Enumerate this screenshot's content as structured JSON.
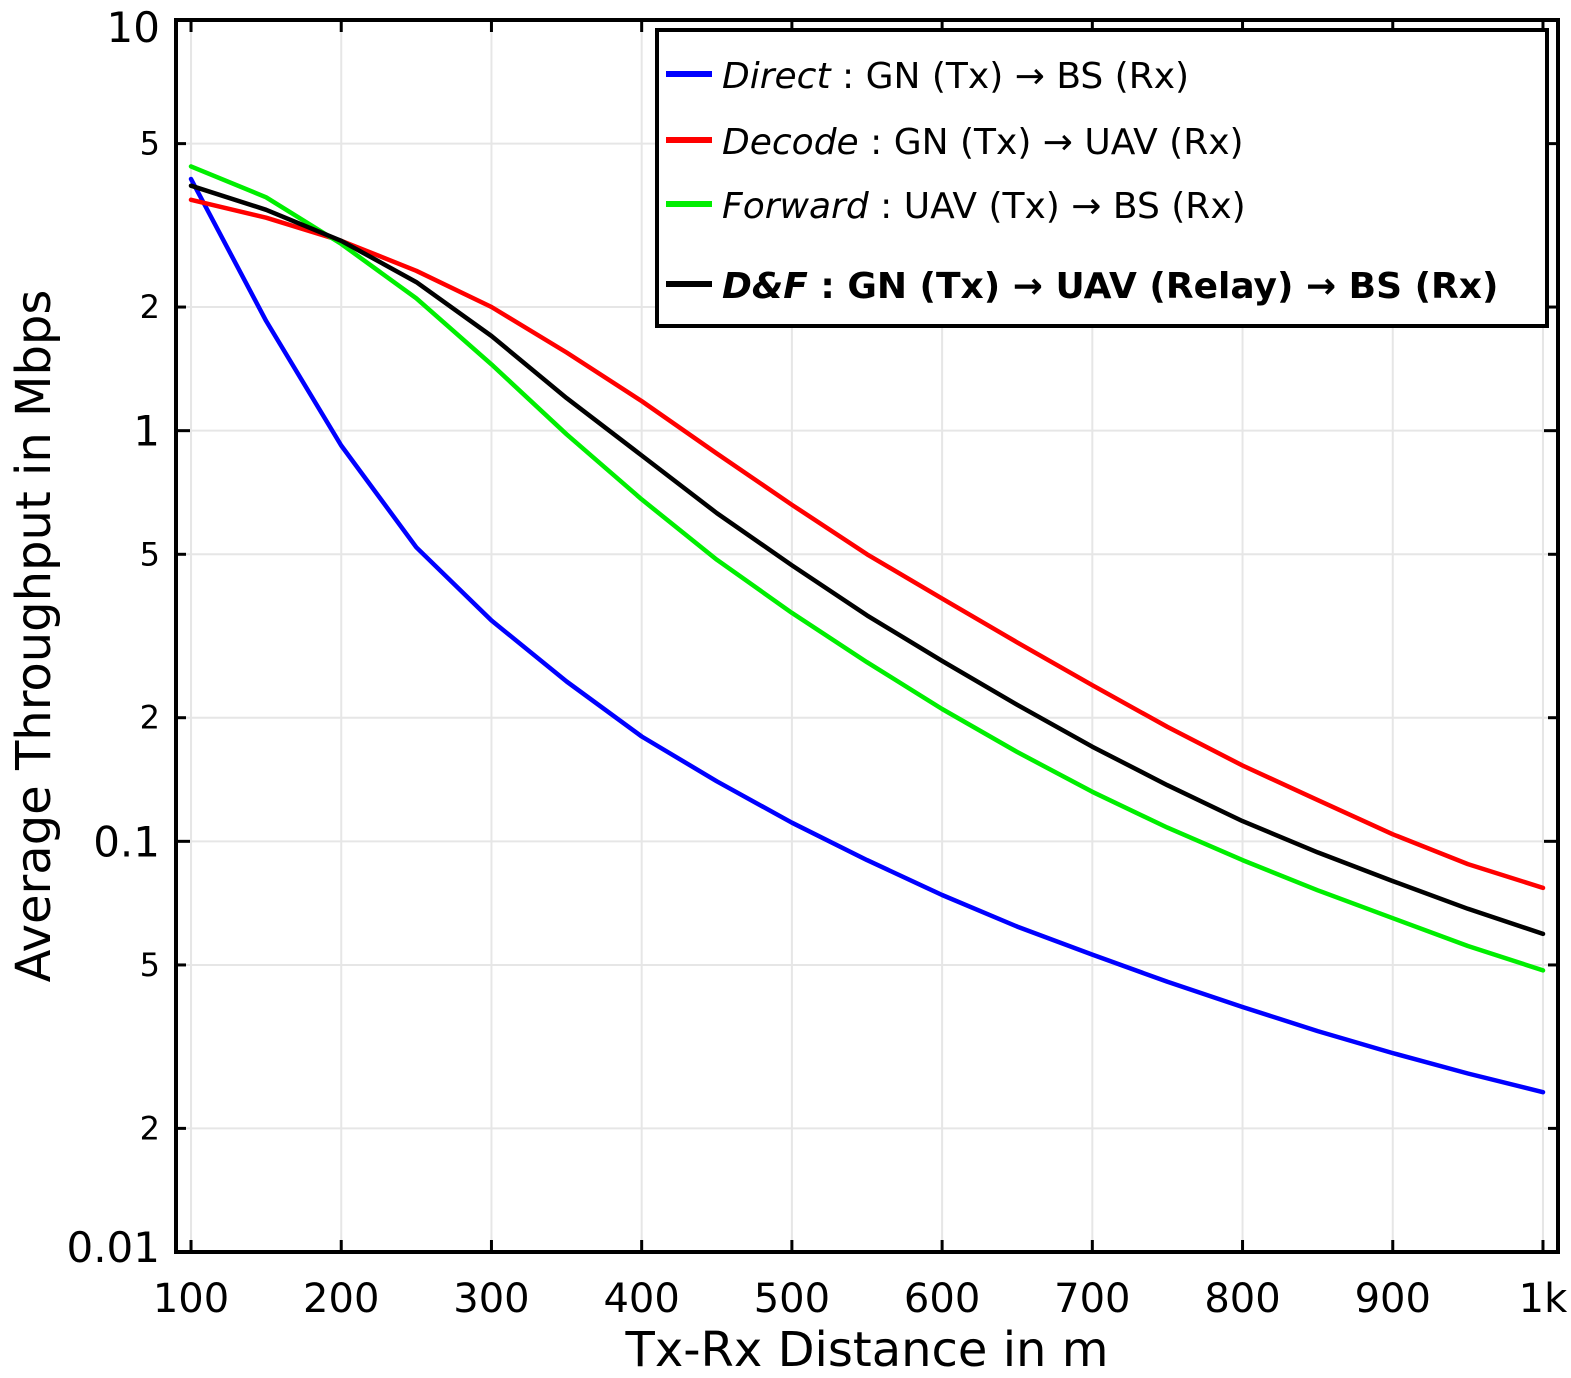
{
  "chart_data": {
    "type": "line",
    "xlabel": "Tx-Rx Distance in m",
    "ylabel": "Average Throughput in Mbps",
    "y_scale": "log",
    "xlim": [
      90,
      1010
    ],
    "ylim": [
      0.01,
      10
    ],
    "grid": true,
    "legend_position": "top-right",
    "x_ticks": [
      {
        "value": 100,
        "label": "100"
      },
      {
        "value": 200,
        "label": "200"
      },
      {
        "value": 300,
        "label": "300"
      },
      {
        "value": 400,
        "label": "400"
      },
      {
        "value": 500,
        "label": "500"
      },
      {
        "value": 600,
        "label": "600"
      },
      {
        "value": 700,
        "label": "700"
      },
      {
        "value": 800,
        "label": "800"
      },
      {
        "value": 900,
        "label": "900"
      },
      {
        "value": 1000,
        "label": "1k"
      }
    ],
    "y_major_ticks": [
      {
        "value": 10,
        "label": "10"
      },
      {
        "value": 1,
        "label": "1"
      },
      {
        "value": 0.1,
        "label": "0.1"
      },
      {
        "value": 0.01,
        "label": "0.01"
      }
    ],
    "y_minor_ticks": [
      {
        "value": 5,
        "label": "5"
      },
      {
        "value": 2,
        "label": "2"
      },
      {
        "value": 0.5,
        "label": "5"
      },
      {
        "value": 0.2,
        "label": "2"
      },
      {
        "value": 0.05,
        "label": "5"
      },
      {
        "value": 0.02,
        "label": "2"
      }
    ],
    "x": [
      100,
      150,
      200,
      250,
      300,
      350,
      400,
      450,
      500,
      550,
      600,
      650,
      700,
      750,
      800,
      850,
      900,
      950,
      1000
    ],
    "series": [
      {
        "name_parts": [
          {
            "text": "Direct",
            "style": "italic"
          },
          {
            "text": " : GN (Tx) → BS (Rx)",
            "style": "normal"
          }
        ],
        "color": "#0000ff",
        "values": [
          4.1,
          1.85,
          0.92,
          0.52,
          0.345,
          0.245,
          0.18,
          0.14,
          0.111,
          0.09,
          0.074,
          0.062,
          0.053,
          0.0455,
          0.0395,
          0.0345,
          0.0305,
          0.0272,
          0.0245
        ]
      },
      {
        "name_parts": [
          {
            "text": "Decode",
            "style": "italic"
          },
          {
            "text": " : GN (Tx) → UAV (Rx)",
            "style": "normal"
          }
        ],
        "color": "#ff0000",
        "values": [
          3.65,
          3.3,
          2.9,
          2.45,
          2.0,
          1.55,
          1.18,
          0.88,
          0.66,
          0.5,
          0.39,
          0.305,
          0.24,
          0.19,
          0.153,
          0.126,
          0.104,
          0.088,
          0.077
        ]
      },
      {
        "name_parts": [
          {
            "text": "Forward",
            "style": "italic"
          },
          {
            "text": " : UAV (Tx) → BS (Rx)",
            "style": "normal"
          }
        ],
        "color": "#00ee00",
        "values": [
          4.4,
          3.7,
          2.85,
          2.1,
          1.45,
          0.98,
          0.68,
          0.485,
          0.36,
          0.273,
          0.21,
          0.165,
          0.132,
          0.108,
          0.09,
          0.076,
          0.065,
          0.0556,
          0.0485
        ]
      },
      {
        "name_parts": [
          {
            "text": "D&F",
            "style": "bold-italic"
          },
          {
            "text": " : GN (Tx) → UAV (Relay) → BS (Rx)",
            "style": "bold"
          }
        ],
        "color": "#000000",
        "values": [
          3.95,
          3.45,
          2.9,
          2.3,
          1.7,
          1.2,
          0.87,
          0.63,
          0.47,
          0.355,
          0.275,
          0.215,
          0.17,
          0.137,
          0.112,
          0.094,
          0.08,
          0.0685,
          0.0595
        ]
      }
    ]
  }
}
